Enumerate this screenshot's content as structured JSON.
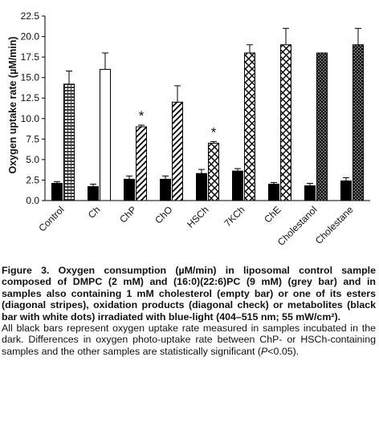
{
  "chart_data": {
    "type": "bar",
    "ylabel": "Oxygen uptake rate (µM/min)",
    "xlabel": "",
    "ylim": [
      0,
      22.5
    ],
    "yticks": [
      "0.0",
      "2.5",
      "5.0",
      "7.5",
      "10.0",
      "12.5",
      "15.0",
      "17.5",
      "20.0",
      "22.5"
    ],
    "grid": false,
    "legend": "none",
    "categories": [
      "Control",
      "Ch",
      "ChP",
      "ChO",
      "HSCh",
      "7KCh",
      "ChE",
      "Cholestanol",
      "Cholestane"
    ],
    "series": [
      {
        "values": [
          2.1,
          1.7,
          2.6,
          2.6,
          3.3,
          3.6,
          2.0,
          1.8,
          2.4
        ],
        "errors": [
          0.2,
          0.3,
          0.4,
          0.4,
          0.5,
          0.3,
          0.2,
          0.3,
          0.4
        ],
        "fills": [
          "black",
          "black",
          "black",
          "black",
          "black",
          "black",
          "black",
          "black",
          "black"
        ]
      },
      {
        "values": [
          14.2,
          16.0,
          9.0,
          12.0,
          7.0,
          18.0,
          19.0,
          18.0,
          19.0
        ],
        "errors": [
          1.6,
          2.0,
          0.2,
          2.0,
          0.2,
          1.0,
          2.0,
          0.0,
          2.0
        ],
        "fills": [
          "grey-brick",
          "empty",
          "diagonal",
          "diagonal",
          "diagonal-check",
          "diagonal-check",
          "diagonal-check",
          "dots",
          "dots"
        ]
      }
    ],
    "significance_marks": [
      "ChP",
      "HSCh"
    ],
    "significance_symbol": "*"
  },
  "caption": {
    "bold": "Figure 3. Oxygen consumption (µM/min) in liposomal control sample composed of DMPC (2 mM) and (16:0)(22:6)PC (9 mM) (grey bar) and in samples also containing 1 mM cholesterol (empty bar) or one of its esters (diagonal stripes), oxidation products (diagonal check) or metabolites (black bar with white dots) irradiated with blue-light (404–515 nm; 55 mW/cm²).",
    "normal_before_p": "All black bars represent oxygen uptake rate measured in samples incubated in the dark. Differences in oxygen photo-uptake rate between ChP- or HSCh-containing samples and the other samples are statistically significant (",
    "p_italic": "P",
    "normal_after_p": "<0.05)."
  }
}
